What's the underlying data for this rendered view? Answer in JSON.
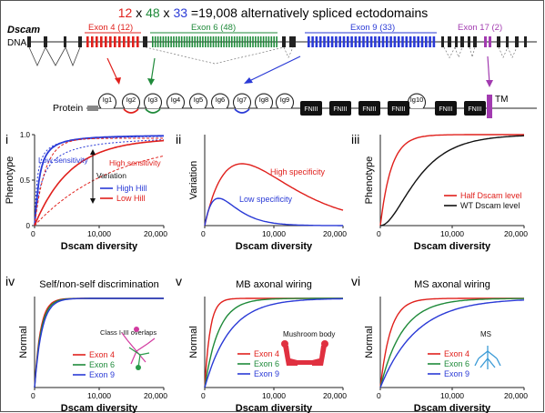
{
  "header": {
    "n1": "12",
    "x1": " x ",
    "n2": "48",
    "x2": " x ",
    "n3": "33",
    "rest": " =19,008 alternatively spliced ectodomains",
    "c1": "#e0201c",
    "c2": "#1f8a3a",
    "c3": "#2a3ad6"
  },
  "gene": {
    "title": "Dscam",
    "dna_label": "DNA",
    "protein_label": "Protein",
    "exon4": "Exon 4 (12)",
    "exon6": "Exon 6 (48)",
    "exon9": "Exon 9 (33)",
    "exon17": "Exon 17 (2)",
    "tm": "TM",
    "colors": {
      "exon4": "#e0201c",
      "exon6": "#1f8a3a",
      "exon9": "#2a3ad6",
      "exon17": "#a23bb0"
    }
  },
  "protein": {
    "ig_domains": [
      "Ig1",
      "Ig2",
      "Ig3",
      "Ig4",
      "Ig5",
      "Ig6",
      "Ig7",
      "Ig8",
      "Ig9",
      "Ig10"
    ],
    "fn_domains": [
      "FNIII",
      "FNIII",
      "FNIII",
      "FNIII",
      "FNIII",
      "FNIII"
    ]
  },
  "panels": [
    {
      "numeral": "i",
      "xlabel": "Dscam diversity",
      "ylabel": "Phenotype",
      "xticks": [
        "0",
        "10,000",
        "20,000"
      ],
      "yticks": [
        "0",
        "0.5",
        "1.0"
      ],
      "annotations": [
        "Low sensitivity",
        "High sensitivity",
        "Variation"
      ],
      "legend": [
        "High Hill",
        "Low Hill"
      ]
    },
    {
      "numeral": "ii",
      "xlabel": "Dscam diversity",
      "ylabel": "Variation",
      "xticks": [
        "0",
        "10,000",
        "20,000"
      ],
      "annotations": [
        "High specificity",
        "Low specificity"
      ]
    },
    {
      "numeral": "iii",
      "xlabel": "Dscam diversity",
      "ylabel": "Phenotype",
      "xticks": [
        "0",
        "10,000",
        "20,000"
      ],
      "legend": [
        "Half Dscam level",
        "WT Dscam level"
      ]
    },
    {
      "numeral": "iv",
      "title": "Self/non-self discrimination",
      "xlabel": "Dscam diversity",
      "ylabel": "Normal",
      "xticks": [
        "0",
        "10,000",
        "20,000"
      ],
      "note": "Class I-III overlaps",
      "legend": [
        "Exon 4",
        "Exon 6",
        "Exon 9"
      ]
    },
    {
      "numeral": "v",
      "title": "MB axonal wiring",
      "xlabel": "Dscam diversity",
      "ylabel": "Normal",
      "xticks": [
        "0",
        "10,000",
        "20,000"
      ],
      "note": "Mushroom body",
      "legend": [
        "Exon 4",
        "Exon 6",
        "Exon 9"
      ]
    },
    {
      "numeral": "vi",
      "title": "MS axonal wiring",
      "xlabel": "Dscam diversity",
      "ylabel": "Normal",
      "xticks": [
        "0",
        "10,000",
        "20,000"
      ],
      "note": "MS",
      "legend": [
        "Exon 4",
        "Exon 6",
        "Exon 9"
      ]
    }
  ]
}
